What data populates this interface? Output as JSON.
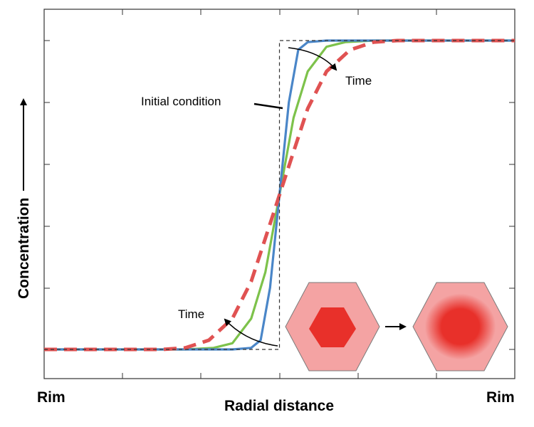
{
  "chart_data": {
    "type": "line",
    "xlabel": "Radial distance",
    "ylabel": "Concentration",
    "x_tick_labels": {
      "left": "Rim",
      "right": "Rim"
    },
    "xlim": [
      0,
      1
    ],
    "ylim": [
      0,
      1
    ],
    "grid": false,
    "series": [
      {
        "style": "dashed-thin",
        "color": "#333333",
        "points": [
          [
            0,
            0.0
          ],
          [
            0.5,
            0.0
          ],
          [
            0.5,
            1.0
          ],
          [
            1,
            1.0
          ]
        ]
      },
      {
        "style": "solid",
        "color": "#4a86c8",
        "points": [
          [
            0,
            0.0
          ],
          [
            0.4,
            0.0
          ],
          [
            0.44,
            0.005
          ],
          [
            0.46,
            0.03
          ],
          [
            0.48,
            0.2
          ],
          [
            0.5,
            0.5
          ],
          [
            0.52,
            0.8
          ],
          [
            0.54,
            0.97
          ],
          [
            0.56,
            0.995
          ],
          [
            0.6,
            1.0
          ],
          [
            1,
            1.0
          ]
        ]
      },
      {
        "style": "solid",
        "color": "#7dc24b",
        "points": [
          [
            0,
            0.0
          ],
          [
            0.3,
            0.0
          ],
          [
            0.36,
            0.005
          ],
          [
            0.4,
            0.02
          ],
          [
            0.44,
            0.1
          ],
          [
            0.47,
            0.25
          ],
          [
            0.5,
            0.5
          ],
          [
            0.53,
            0.75
          ],
          [
            0.56,
            0.9
          ],
          [
            0.6,
            0.98
          ],
          [
            0.64,
            0.995
          ],
          [
            0.7,
            1.0
          ],
          [
            1,
            1.0
          ]
        ]
      },
      {
        "style": "dashed-thick",
        "color": "#e05252",
        "points": [
          [
            0,
            0.0
          ],
          [
            0.25,
            0.0
          ],
          [
            0.3,
            0.005
          ],
          [
            0.35,
            0.03
          ],
          [
            0.4,
            0.1
          ],
          [
            0.44,
            0.22
          ],
          [
            0.47,
            0.36
          ],
          [
            0.5,
            0.5
          ],
          [
            0.53,
            0.64
          ],
          [
            0.56,
            0.78
          ],
          [
            0.6,
            0.9
          ],
          [
            0.65,
            0.97
          ],
          [
            0.7,
            0.995
          ],
          [
            0.75,
            1.0
          ],
          [
            1,
            1.0
          ]
        ]
      }
    ],
    "annotations": [
      {
        "text": "Initial condition"
      },
      {
        "text": "Time"
      },
      {
        "text": "Time"
      }
    ]
  },
  "inset": {
    "fill_outer": "#f4a3a3",
    "fill_inner": "#e8302a",
    "stroke": "#7a7a7a"
  }
}
